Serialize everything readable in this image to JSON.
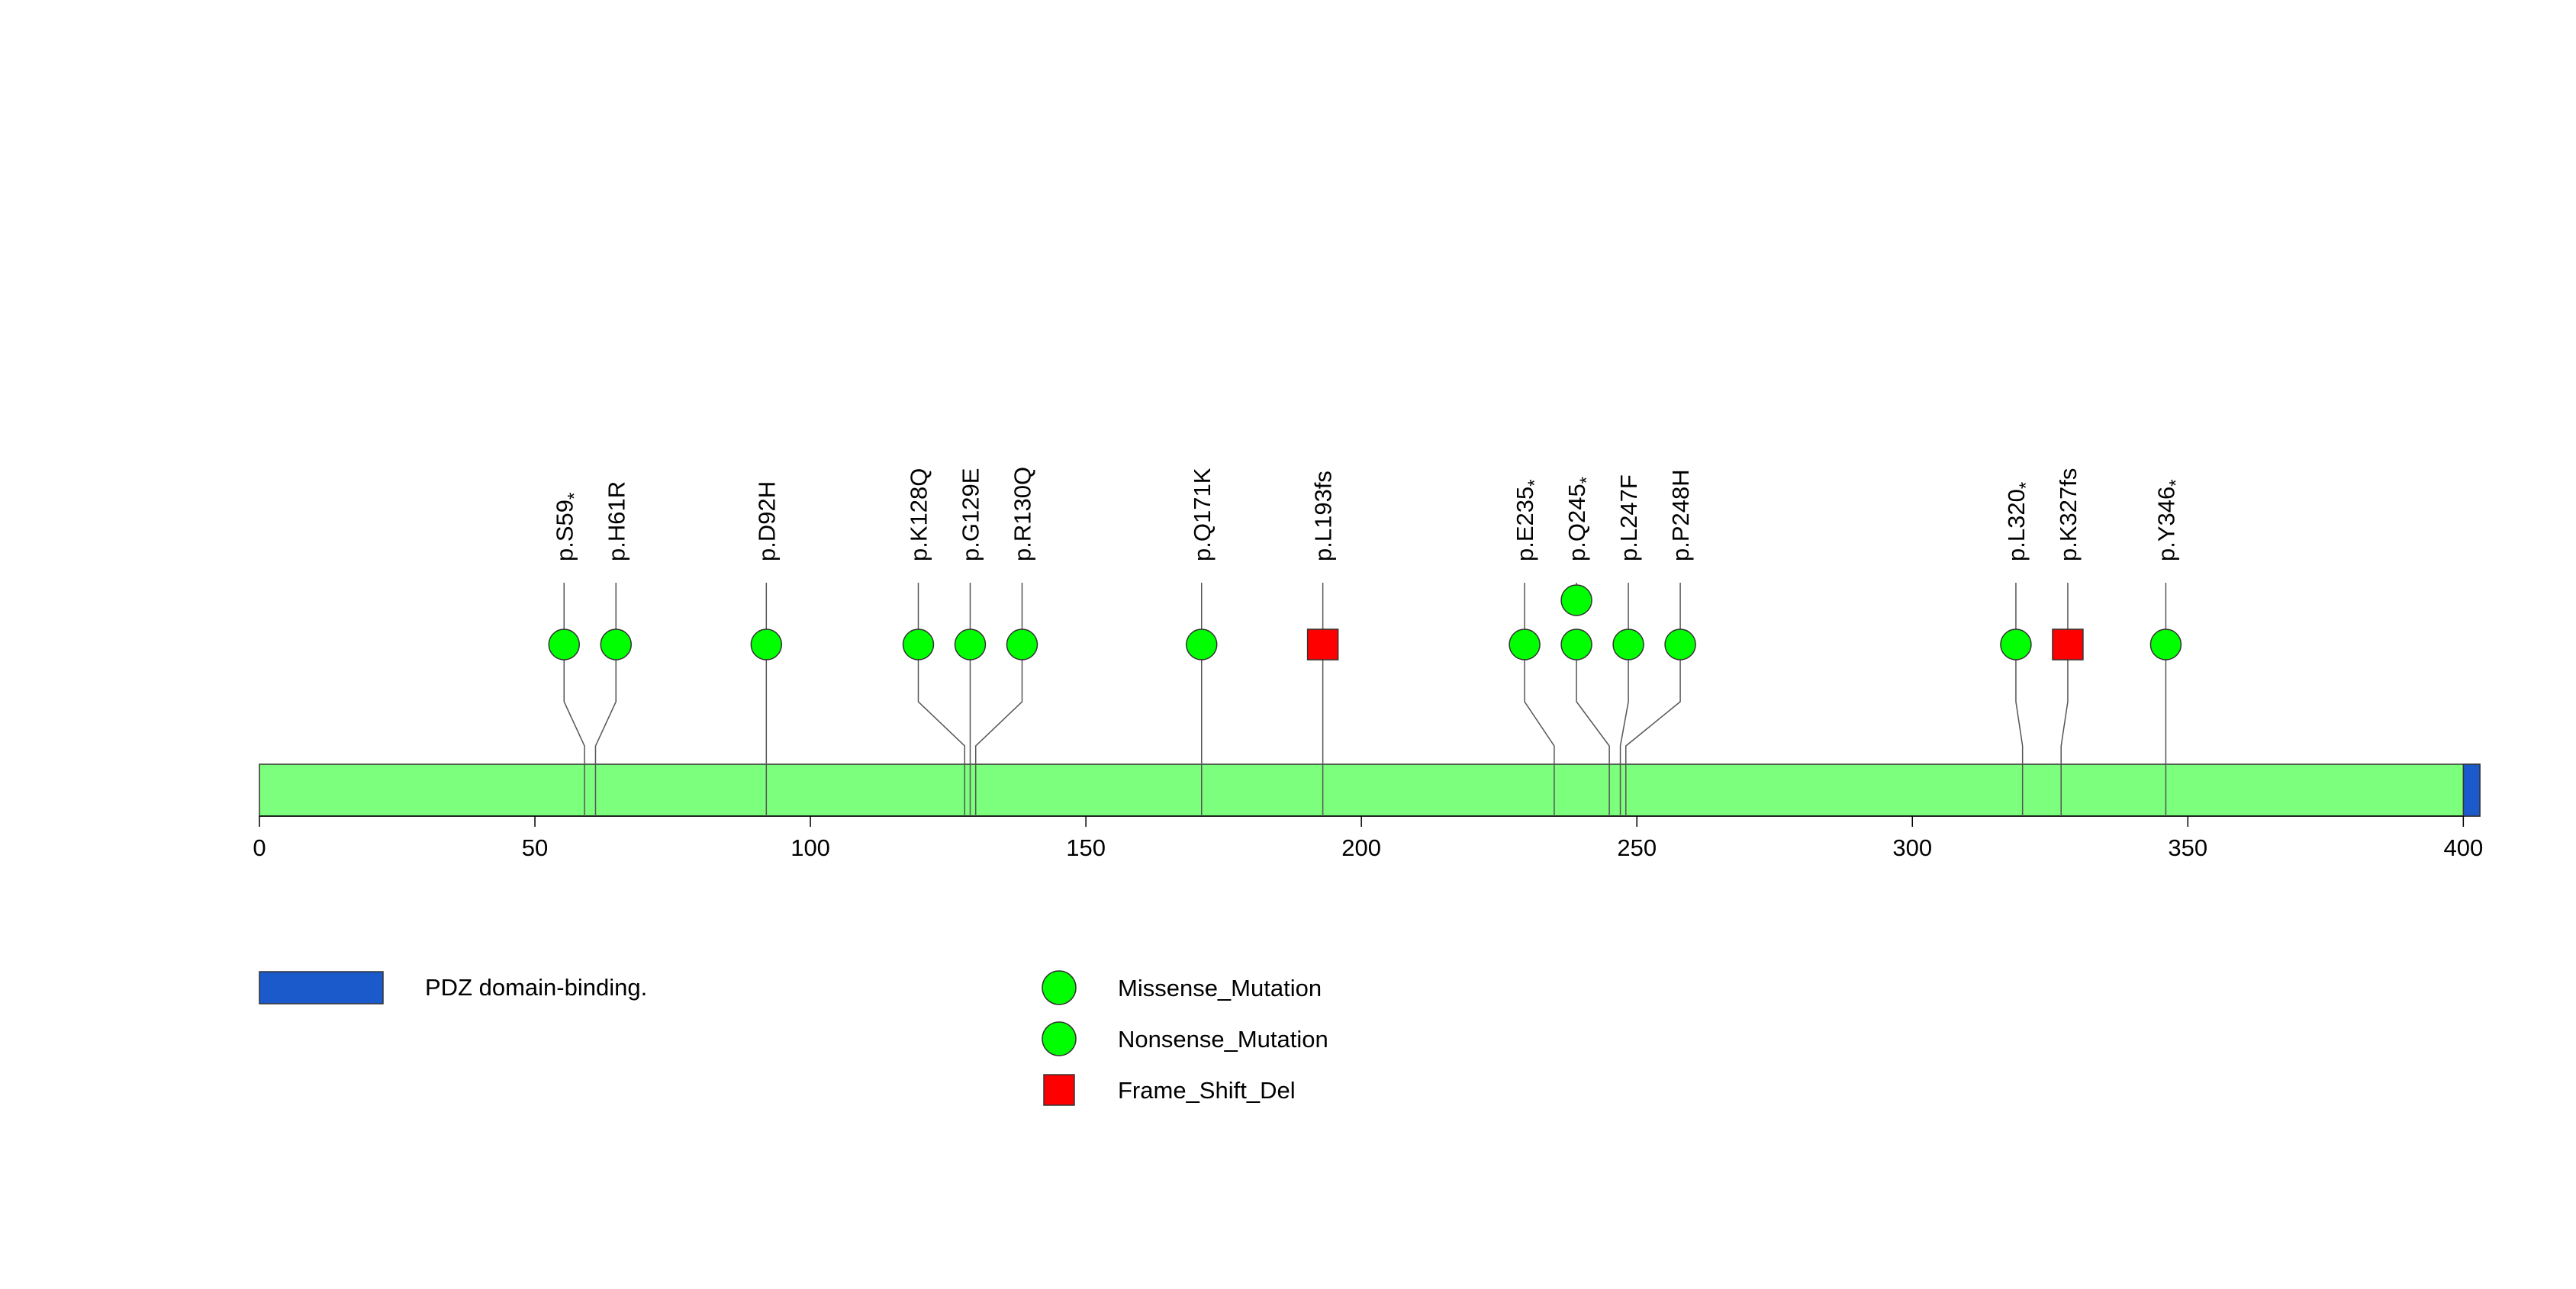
{
  "chart_data": {
    "type": "lollipop",
    "protein_length": 403,
    "x_axis": {
      "range": [
        0,
        403
      ],
      "ticks": [
        0,
        50,
        100,
        150,
        200,
        250,
        300,
        350,
        400
      ]
    },
    "domains": [
      {
        "name": "PDZ domain-binding.",
        "start": 400,
        "end": 403,
        "color": "#1A5ACB"
      }
    ],
    "backbone_color": "#7CFF7C",
    "mutation_types": [
      {
        "type": "Missense_Mutation",
        "shape": "circle",
        "color": "#00FF00"
      },
      {
        "type": "Nonsense_Mutation",
        "shape": "circle",
        "color": "#00FF00"
      },
      {
        "type": "Frame_Shift_Del",
        "shape": "square",
        "color": "#FF0000"
      }
    ],
    "mutations": [
      {
        "label": "p.S59",
        "suffix": "*",
        "position": 59,
        "type": "Nonsense_Mutation",
        "count": 1
      },
      {
        "label": "p.H61R",
        "suffix": "",
        "position": 61,
        "type": "Missense_Mutation",
        "count": 1
      },
      {
        "label": "p.D92H",
        "suffix": "",
        "position": 92,
        "type": "Missense_Mutation",
        "count": 1
      },
      {
        "label": "p.K128Q",
        "suffix": "",
        "position": 128,
        "type": "Missense_Mutation",
        "count": 1
      },
      {
        "label": "p.G129E",
        "suffix": "",
        "position": 129,
        "type": "Missense_Mutation",
        "count": 1
      },
      {
        "label": "p.R130Q",
        "suffix": "",
        "position": 130,
        "type": "Missense_Mutation",
        "count": 1
      },
      {
        "label": "p.Q171K",
        "suffix": "",
        "position": 171,
        "type": "Missense_Mutation",
        "count": 1
      },
      {
        "label": "p.L193fs",
        "suffix": "",
        "position": 193,
        "type": "Frame_Shift_Del",
        "count": 1
      },
      {
        "label": "p.E235",
        "suffix": "*",
        "position": 235,
        "type": "Nonsense_Mutation",
        "count": 1
      },
      {
        "label": "p.Q245",
        "suffix": "*",
        "position": 245,
        "type": "Nonsense_Mutation",
        "count": 2
      },
      {
        "label": "p.L247F",
        "suffix": "",
        "position": 247,
        "type": "Missense_Mutation",
        "count": 1
      },
      {
        "label": "p.P248H",
        "suffix": "",
        "position": 248,
        "type": "Missense_Mutation",
        "count": 1
      },
      {
        "label": "p.L320",
        "suffix": "*",
        "position": 320,
        "type": "Nonsense_Mutation",
        "count": 1
      },
      {
        "label": "p.K327fs",
        "suffix": "",
        "position": 327,
        "type": "Frame_Shift_Del",
        "count": 1
      },
      {
        "label": "p.Y346",
        "suffix": "*",
        "position": 346,
        "type": "Nonsense_Mutation",
        "count": 1
      }
    ],
    "legend": {
      "domains": [
        {
          "label": "PDZ domain-binding.",
          "color": "#1A5ACB"
        }
      ],
      "mutations": [
        {
          "label": "Missense_Mutation",
          "shape": "circle",
          "color": "#00FF00"
        },
        {
          "label": "Nonsense_Mutation",
          "shape": "circle",
          "color": "#00FF00"
        },
        {
          "label": "Frame_Shift_Del",
          "shape": "square",
          "color": "#FF0000"
        }
      ]
    }
  }
}
